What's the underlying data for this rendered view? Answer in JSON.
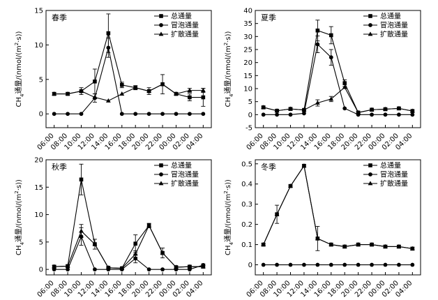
{
  "chart_data": [
    {
      "type": "line",
      "title": "春季",
      "ylabel": "CH4通量/(nmol/(m²·s))",
      "ylim": [
        -2,
        15
      ],
      "yticks": [
        0,
        5,
        10,
        15
      ],
      "categories": [
        "06:00",
        "08:00",
        "10:00",
        "12:00",
        "14:00",
        "16:00",
        "18:00",
        "20:00",
        "22:00",
        "00:00",
        "02:00",
        "04:00"
      ],
      "series": [
        {
          "name": "总通量",
          "marker": "square",
          "values": [
            2.9,
            2.9,
            3.3,
            4.7,
            11.7,
            4.2,
            3.8,
            3.3,
            4.3,
            2.9,
            2.4,
            2.4
          ],
          "errors": [
            0.2,
            0.2,
            0.5,
            1.8,
            2.8,
            0.4,
            0.3,
            0.5,
            1.4,
            0.2,
            0.5,
            1.3
          ]
        },
        {
          "name": "冒泡通量",
          "marker": "circle",
          "values": [
            0,
            0,
            0,
            2.3,
            9.6,
            0,
            0,
            0,
            0,
            0,
            0,
            0
          ],
          "errors": [
            0,
            0,
            0,
            0.6,
            1.4,
            0,
            0,
            0,
            0,
            0,
            0,
            0
          ]
        },
        {
          "name": "扩散通量",
          "marker": "triangle",
          "values": [
            2.9,
            2.9,
            3.3,
            2.4,
            1.9,
            2.9,
            3.8,
            3.3,
            4.3,
            2.9,
            3.4,
            3.4
          ],
          "errors": [
            0,
            0,
            0,
            0,
            0,
            0,
            0,
            0,
            0,
            0,
            0.3,
            0.3
          ]
        }
      ]
    },
    {
      "type": "line",
      "title": "夏季",
      "ylabel": "CH4通量/(nmol/(m²·s))",
      "ylim": [
        -5,
        40
      ],
      "yticks": [
        -5,
        0,
        5,
        10,
        15,
        20,
        25,
        30,
        35,
        40
      ],
      "categories": [
        "06:00",
        "08:00",
        "10:00",
        "12:00",
        "14:00",
        "16:00",
        "18:00",
        "20:00",
        "22:00",
        "00:00",
        "02:00",
        "04:00"
      ],
      "series": [
        {
          "name": "总通量",
          "marker": "square",
          "values": [
            2.8,
            1.5,
            2.2,
            1.8,
            32.3,
            30.5,
            12.1,
            0.8,
            1.9,
            2.1,
            2.4,
            1.4
          ],
          "errors": [
            0.3,
            0.3,
            0.3,
            0.3,
            4.0,
            3.3,
            1.3,
            0.3,
            0.3,
            0.3,
            0.3,
            0.3
          ]
        },
        {
          "name": "冒泡通量",
          "marker": "circle",
          "values": [
            0,
            0,
            0,
            0.5,
            27.0,
            22.0,
            2.4,
            0,
            0,
            0,
            0,
            0
          ],
          "errors": [
            0,
            0,
            0,
            0,
            3.2,
            3.0,
            0,
            0,
            0,
            0,
            0,
            0
          ]
        },
        {
          "name": "扩散通量",
          "marker": "triangle",
          "values": [
            2.8,
            1.5,
            2.2,
            1.8,
            4.5,
            6.0,
            10.5,
            0.8,
            1.9,
            2.1,
            2.4,
            1.4
          ],
          "errors": [
            0,
            0,
            0,
            0,
            1.2,
            1.0,
            0,
            0,
            0,
            0,
            0,
            0
          ]
        }
      ]
    },
    {
      "type": "line",
      "title": "秋季",
      "ylabel": "CH4通量/(nmol/(m²·s))",
      "ylim": [
        -1,
        20
      ],
      "yticks": [
        0,
        5,
        10,
        15,
        20
      ],
      "categories": [
        "06:00",
        "08:00",
        "10:00",
        "12:00",
        "14:00",
        "16:00",
        "18:00",
        "20:00",
        "22:00",
        "00:00",
        "02:00",
        "04:00"
      ],
      "series": [
        {
          "name": "总通量",
          "marker": "square",
          "values": [
            0.5,
            0.6,
            16.4,
            4.6,
            0.3,
            0.2,
            4.7,
            8.0,
            3.0,
            0.4,
            0.5,
            0.5
          ],
          "errors": [
            0.2,
            0.2,
            2.8,
            0.9,
            0.1,
            0.1,
            1.6,
            0.4,
            0.9,
            0.2,
            0.2,
            0.2
          ]
        },
        {
          "name": "冒泡通量",
          "marker": "circle",
          "values": [
            0,
            0,
            6.0,
            0,
            0,
            0,
            2.0,
            0,
            0,
            0,
            0,
            0.8
          ],
          "errors": [
            0,
            0,
            1.6,
            0,
            0,
            0,
            0.8,
            0,
            0,
            0,
            0,
            0.2
          ]
        },
        {
          "name": "扩散通量",
          "marker": "triangle",
          "values": [
            0.5,
            0.6,
            7.0,
            4.6,
            0.3,
            0.2,
            2.8,
            8.0,
            3.0,
            0.4,
            0.5,
            0.5
          ],
          "errors": [
            0,
            0,
            1.2,
            0,
            0,
            0,
            0.6,
            0,
            0,
            0,
            0,
            0
          ]
        }
      ]
    },
    {
      "type": "line",
      "title": "冬季",
      "ylabel": "CH4通量/(nmol/(m²·s))",
      "ylim": [
        -0.05,
        0.52
      ],
      "yticks": [
        0,
        0.1,
        0.2,
        0.3,
        0.4,
        0.5
      ],
      "categories": [
        "06:00",
        "08:00",
        "10:00",
        "12:00",
        "14:00",
        "16:00",
        "18:00",
        "20:00",
        "22:00",
        "00:00",
        "02:00",
        "04:00"
      ],
      "series": [
        {
          "name": "总通量",
          "marker": "square",
          "values": [
            0.1,
            0.25,
            0.39,
            0.49,
            0.13,
            0.1,
            0.09,
            0.1,
            0.1,
            0.09,
            0.09,
            0.08
          ],
          "errors": [
            0.005,
            0.045,
            0.005,
            0.005,
            0.06,
            0.005,
            0.005,
            0.005,
            0.005,
            0.005,
            0.005,
            0.005
          ]
        },
        {
          "name": "冒泡通量",
          "marker": "circle",
          "values": [
            0,
            0,
            0,
            0,
            0,
            0,
            0,
            0,
            0,
            0,
            0,
            0
          ],
          "errors": [
            0,
            0,
            0,
            0,
            0,
            0,
            0,
            0,
            0,
            0,
            0,
            0
          ]
        },
        {
          "name": "扩散通量",
          "marker": "triangle",
          "values": [
            0.1,
            0.25,
            0.39,
            0.49,
            0.13,
            0.1,
            0.09,
            0.1,
            0.1,
            0.09,
            0.09,
            0.08
          ],
          "errors": [
            0,
            0,
            0,
            0,
            0,
            0,
            0,
            0,
            0,
            0,
            0,
            0
          ]
        }
      ]
    }
  ],
  "legend": {
    "items": [
      {
        "label": "总通量",
        "marker": "square"
      },
      {
        "label": "冒泡通量",
        "marker": "circle"
      },
      {
        "label": "扩散通量",
        "marker": "triangle"
      }
    ]
  },
  "colors": {
    "ink": "#000000"
  }
}
